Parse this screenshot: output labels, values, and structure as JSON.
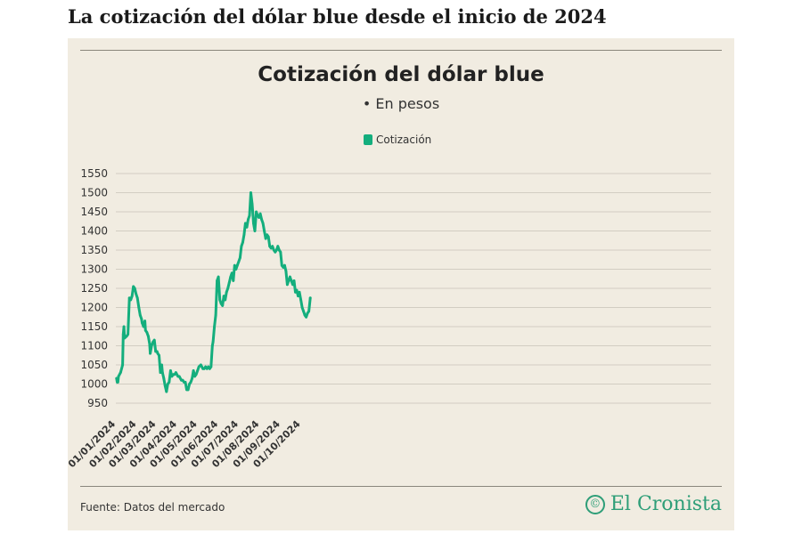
{
  "headline": "La cotización del dólar blue desde el inicio de 2024",
  "source": "Fuente: Datos del mercado",
  "brand": {
    "name": "El Cronista",
    "icon": "copyright-icon"
  },
  "colors": {
    "line": "#14ae7d",
    "background": "#f1ece1",
    "grid": "#d2cdc2"
  },
  "chart_data": {
    "type": "line",
    "title": "Cotización del dólar blue",
    "subtitle": "• En pesos",
    "legend": "top-center",
    "grid": true,
    "xlabel": "",
    "ylabel": "",
    "ylim": [
      950,
      1550
    ],
    "yticks": [
      950,
      1000,
      1050,
      1100,
      1150,
      1200,
      1250,
      1300,
      1350,
      1400,
      1450,
      1500,
      1550
    ],
    "xticks": [
      "01/01/2024",
      "01/02/2024",
      "01/03/2024",
      "01/04/2024",
      "01/05/2024",
      "01/06/2024",
      "01/07/2024",
      "01/08/2024",
      "01/09/2024",
      "01/10/2024"
    ],
    "series": [
      {
        "name": "Cotización",
        "x": [
          "2024-01-02",
          "2024-01-03",
          "2024-01-04",
          "2024-01-05",
          "2024-01-08",
          "2024-01-11",
          "2024-01-12",
          "2024-01-13",
          "2024-01-14",
          "2024-01-17",
          "2024-01-19",
          "2024-01-21",
          "2024-01-23",
          "2024-01-25",
          "2024-01-27",
          "2024-01-29",
          "2024-01-31",
          "2024-02-02",
          "2024-02-04",
          "2024-02-06",
          "2024-02-08",
          "2024-02-09",
          "2024-02-11",
          "2024-02-13",
          "2024-02-14",
          "2024-02-16",
          "2024-02-18",
          "2024-02-20",
          "2024-02-21",
          "2024-02-23",
          "2024-02-25",
          "2024-02-27",
          "2024-02-29",
          "2024-03-02",
          "2024-03-03",
          "2024-03-05",
          "2024-03-07",
          "2024-03-09",
          "2024-03-10",
          "2024-03-12",
          "2024-03-14",
          "2024-03-16",
          "2024-03-18",
          "2024-03-20",
          "2024-03-22",
          "2024-03-24",
          "2024-03-26",
          "2024-03-28",
          "2024-03-30",
          "2024-04-02",
          "2024-04-04",
          "2024-04-07",
          "2024-04-09",
          "2024-04-11",
          "2024-04-13",
          "2024-04-15",
          "2024-04-17",
          "2024-04-19",
          "2024-04-21",
          "2024-04-23",
          "2024-04-25",
          "2024-04-27",
          "2024-04-29",
          "2024-05-01",
          "2024-05-03",
          "2024-05-06",
          "2024-05-09",
          "2024-05-11",
          "2024-05-13",
          "2024-05-15",
          "2024-05-17",
          "2024-05-19",
          "2024-05-21",
          "2024-05-23",
          "2024-05-24",
          "2024-05-26",
          "2024-05-28",
          "2024-05-30",
          "2024-06-01",
          "2024-06-03",
          "2024-06-05",
          "2024-06-07",
          "2024-06-09",
          "2024-06-11",
          "2024-06-13",
          "2024-06-15",
          "2024-06-17",
          "2024-06-19",
          "2024-06-21",
          "2024-06-23",
          "2024-06-25",
          "2024-06-27",
          "2024-06-29",
          "2024-07-01",
          "2024-07-03",
          "2024-07-05",
          "2024-07-07",
          "2024-07-09",
          "2024-07-11",
          "2024-07-13",
          "2024-07-15",
          "2024-07-17",
          "2024-07-19",
          "2024-07-21",
          "2024-07-23",
          "2024-07-25",
          "2024-07-27",
          "2024-07-29",
          "2024-07-31",
          "2024-08-02",
          "2024-08-04",
          "2024-08-06",
          "2024-08-08",
          "2024-08-10",
          "2024-08-12",
          "2024-08-14",
          "2024-08-16",
          "2024-08-18",
          "2024-08-20",
          "2024-08-22",
          "2024-08-24",
          "2024-08-26",
          "2024-08-28",
          "2024-08-30",
          "2024-09-01",
          "2024-09-03",
          "2024-09-05",
          "2024-09-07",
          "2024-09-09",
          "2024-09-11",
          "2024-09-13",
          "2024-09-15",
          "2024-09-17",
          "2024-09-19",
          "2024-09-21",
          "2024-09-23",
          "2024-09-25",
          "2024-09-27",
          "2024-09-29",
          "2024-10-01",
          "2024-10-03",
          "2024-10-05",
          "2024-10-07",
          "2024-10-09",
          "2024-10-11",
          "2024-10-13",
          "2024-10-15"
        ],
        "values": [
          1015,
          1005,
          1005,
          1020,
          1030,
          1050,
          1130,
          1150,
          1120,
          1125,
          1130,
          1225,
          1220,
          1230,
          1255,
          1250,
          1235,
          1225,
          1200,
          1180,
          1170,
          1160,
          1150,
          1165,
          1140,
          1135,
          1125,
          1105,
          1080,
          1100,
          1110,
          1115,
          1085,
          1085,
          1080,
          1075,
          1030,
          1050,
          1030,
          1015,
          995,
          980,
          1000,
          1005,
          1035,
          1020,
          1025,
          1025,
          1030,
          1020,
          1020,
          1010,
          1010,
          1005,
          1005,
          985,
          985,
          1000,
          1005,
          1015,
          1035,
          1020,
          1025,
          1035,
          1045,
          1050,
          1040,
          1040,
          1045,
          1040,
          1045,
          1040,
          1045,
          1100,
          1110,
          1150,
          1180,
          1270,
          1280,
          1220,
          1210,
          1205,
          1230,
          1220,
          1240,
          1250,
          1265,
          1280,
          1290,
          1270,
          1310,
          1300,
          1310,
          1320,
          1330,
          1360,
          1370,
          1390,
          1420,
          1410,
          1430,
          1440,
          1500,
          1470,
          1420,
          1400,
          1450,
          1440,
          1435,
          1445,
          1430,
          1420,
          1400,
          1380,
          1390,
          1385,
          1360,
          1355,
          1360,
          1350,
          1345,
          1350,
          1360,
          1350,
          1345,
          1310,
          1305,
          1310,
          1295,
          1260,
          1270,
          1280,
          1270,
          1260,
          1270,
          1240,
          1245,
          1230,
          1240,
          1220,
          1200,
          1190,
          1180,
          1175,
          1185,
          1190,
          1225
        ]
      }
    ]
  }
}
